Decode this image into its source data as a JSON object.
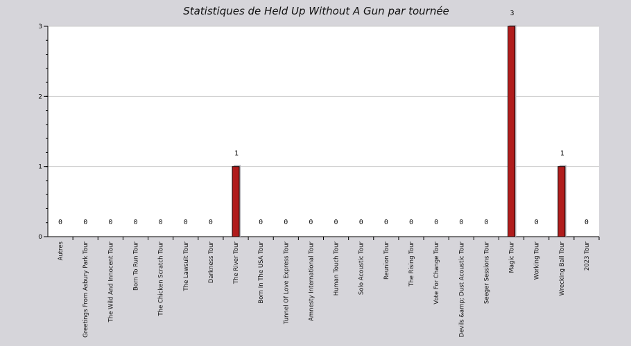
{
  "chart_data": {
    "type": "bar",
    "title": "Statistiques de Held Up Without A Gun par tournée",
    "xlabel": "",
    "ylabel": "",
    "ylim": [
      0,
      3
    ],
    "yticks": [
      0,
      1,
      2,
      3
    ],
    "grid": true,
    "categories": [
      "Autres",
      "Greetings From Asbury Park Tour",
      "The Wild And Innocent Tour",
      "Born To Run Tour",
      "The Chicken Scratch Tour",
      "The Lawsuit Tour",
      "Darkness Tour",
      "The River Tour",
      "Born In The USA Tour",
      "Tunnel Of Love Express Tour",
      "Amnesty International Tour",
      "Human Touch Tour",
      "Solo Acoustic Tour",
      "Reunion Tour",
      "The Rising Tour",
      "Vote For Change Tour",
      "Devils &amp; Dust Acoustic Tour",
      "Seeger Sessions Tour",
      "Magic Tour",
      "Working Tour",
      "Wrecking Ball Tour",
      "2023 Tour"
    ],
    "values": [
      0,
      0,
      0,
      0,
      0,
      0,
      0,
      1,
      0,
      0,
      0,
      0,
      0,
      0,
      0,
      0,
      0,
      0,
      3,
      0,
      1,
      0
    ],
    "colors": {
      "bar": "#b01c1c",
      "bar_outline": "#1a0505",
      "bar_shadow": "#b0afb4",
      "plot_background": "#ffffff",
      "page_background": "#d6d5da",
      "grid": "#cccccc",
      "axis": "#000000"
    }
  }
}
